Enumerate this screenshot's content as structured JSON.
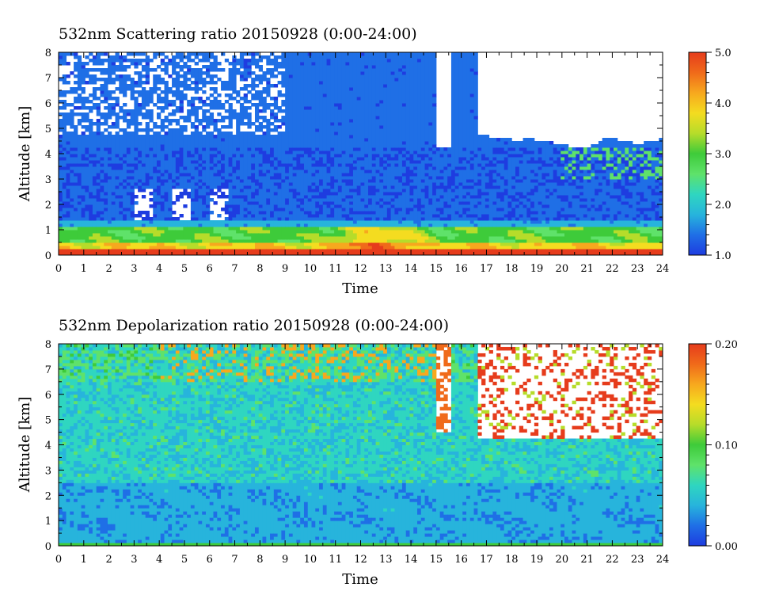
{
  "chart_data": [
    {
      "type": "heatmap",
      "title": "532nm Scattering ratio  20150928 (0:00-24:00)",
      "xlabel": "Time",
      "ylabel": "Altitude [km]",
      "x_ticks": [
        "0",
        "1",
        "2",
        "3",
        "4",
        "5",
        "6",
        "7",
        "8",
        "9",
        "10",
        "11",
        "12",
        "13",
        "14",
        "15",
        "16",
        "17",
        "18",
        "19",
        "20",
        "21",
        "22",
        "23",
        "24"
      ],
      "y_ticks": [
        "0",
        "1",
        "2",
        "3",
        "4",
        "5",
        "6",
        "7",
        "8"
      ],
      "xlim": [
        0,
        24
      ],
      "ylim": [
        0,
        8
      ],
      "colorbar": {
        "range": [
          1.0,
          5.0
        ],
        "ticks": [
          "1.0",
          "2.0",
          "3.0",
          "4.0",
          "5.0"
        ]
      },
      "colormap": [
        "#1e3ce0",
        "#1f6fe6",
        "#27b4dc",
        "#2fd6c0",
        "#5fe26a",
        "#3ecb3a",
        "#b6dc2a",
        "#f4dc20",
        "#f7a81e",
        "#f06a1a",
        "#e63c1c"
      ],
      "grid": false,
      "features": [
        {
          "kind": "surface_layer",
          "alt_km": [
            0.0,
            0.3
          ],
          "value": 4.8
        },
        {
          "kind": "aerosol_layer",
          "alt_km": [
            0.3,
            1.1
          ],
          "value_range": [
            2.5,
            4.5
          ]
        },
        {
          "kind": "enhanced_aerosol",
          "time_h": [
            10.5,
            15.0
          ],
          "alt_km": [
            0.3,
            1.3
          ],
          "value": 4.2
        },
        {
          "kind": "background",
          "alt_km": [
            1.2,
            8.0
          ],
          "value_range": [
            1.2,
            1.6
          ]
        },
        {
          "kind": "missing_data_regions",
          "time_h": [
            15.0,
            24.0
          ],
          "alt_km": [
            4.5,
            8.0
          ]
        }
      ]
    },
    {
      "type": "heatmap",
      "title": "532nm Depolarization ratio  20150928 (0:00-24:00)",
      "xlabel": "Time",
      "ylabel": "Altitude [km]",
      "x_ticks": [
        "0",
        "1",
        "2",
        "3",
        "4",
        "5",
        "6",
        "7",
        "8",
        "9",
        "10",
        "11",
        "12",
        "13",
        "14",
        "15",
        "16",
        "17",
        "18",
        "19",
        "20",
        "21",
        "22",
        "23",
        "24"
      ],
      "y_ticks": [
        "0",
        "1",
        "2",
        "3",
        "4",
        "5",
        "6",
        "7",
        "8"
      ],
      "xlim": [
        0,
        24
      ],
      "ylim": [
        0,
        8
      ],
      "colorbar": {
        "range": [
          0.0,
          0.2
        ],
        "ticks": [
          "0.00",
          "0.10",
          "0.20"
        ]
      },
      "colormap": [
        "#1e3ce0",
        "#1f6fe6",
        "#27b4dc",
        "#2fd6c0",
        "#5fe26a",
        "#3ecb3a",
        "#b6dc2a",
        "#f4dc20",
        "#f7a81e",
        "#f06a1a",
        "#e63c1c"
      ],
      "grid": false,
      "features": [
        {
          "kind": "surface_layer",
          "alt_km": [
            0.0,
            0.12
          ],
          "value": 0.09
        },
        {
          "kind": "boundary_layer",
          "alt_km": [
            0.1,
            2.5
          ],
          "value_range": [
            0.02,
            0.04
          ]
        },
        {
          "kind": "free_troposphere",
          "alt_km": [
            2.5,
            8.0
          ],
          "value_range": [
            0.04,
            0.08
          ]
        },
        {
          "kind": "noisy_high_values",
          "time_h": [
            15.0,
            24.0
          ],
          "alt_km": [
            4.0,
            8.0
          ],
          "value": 0.18
        }
      ]
    }
  ]
}
